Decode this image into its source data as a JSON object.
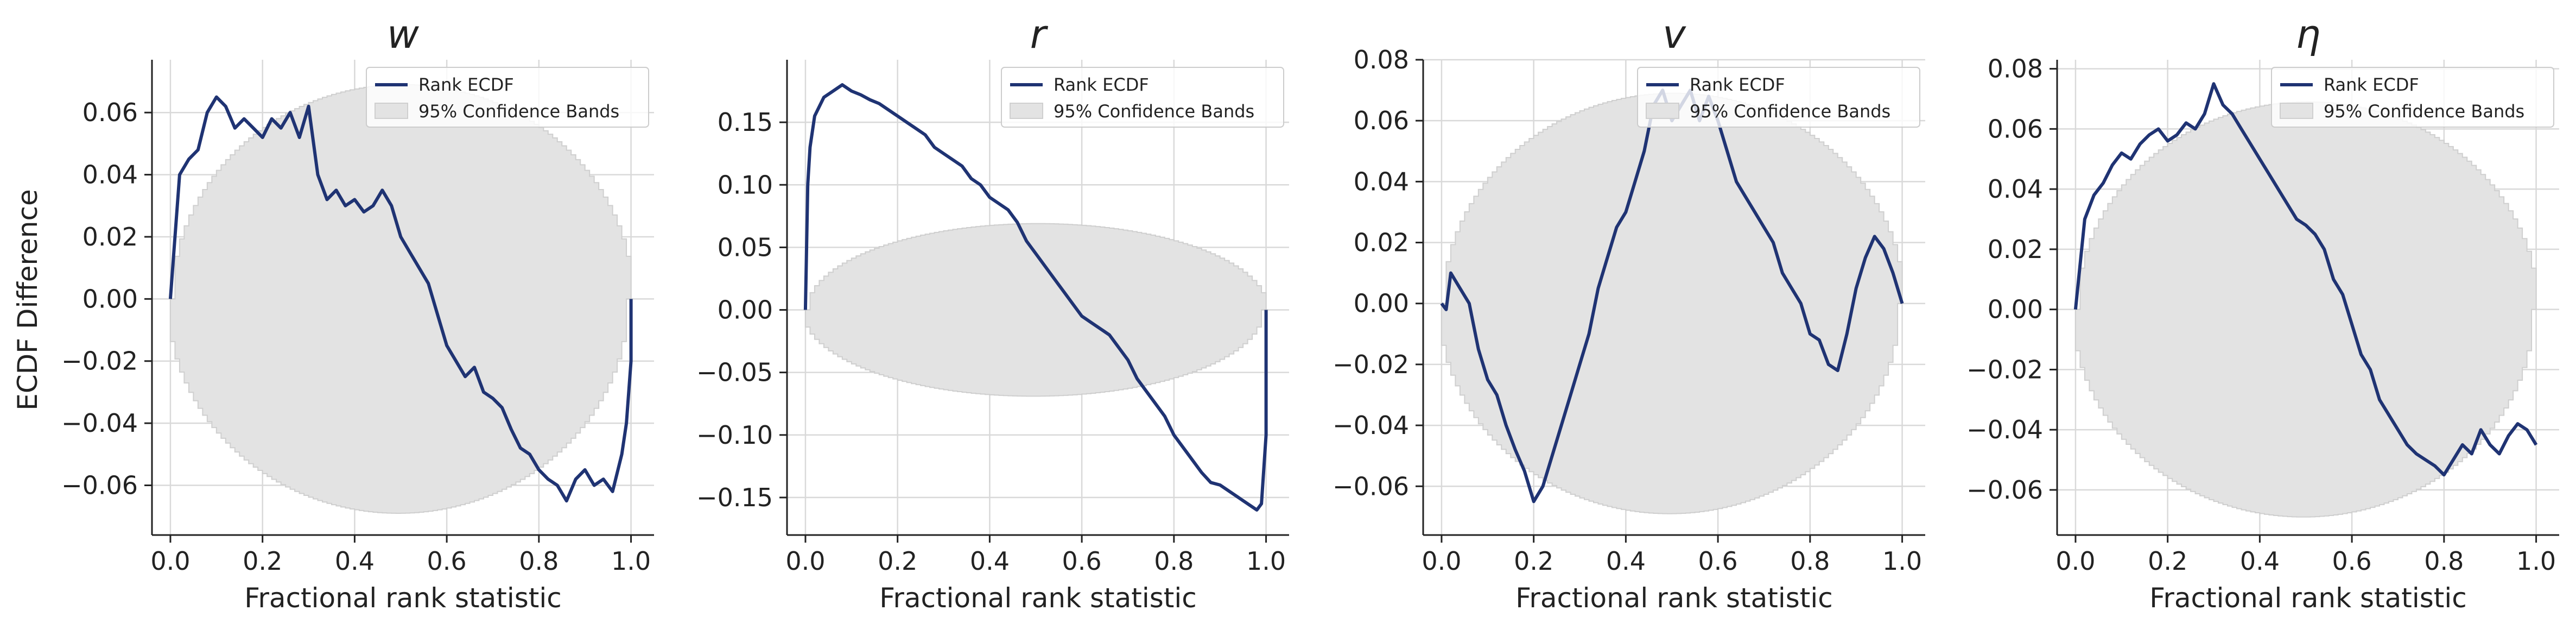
{
  "figure": {
    "shared_ylabel": "ECDF Difference",
    "xlabel": "Fractional rank statistic",
    "legend": {
      "line_label": "Rank ECDF",
      "band_label": "95% Confidence Bands",
      "placement": "upper right"
    },
    "colors": {
      "line": "#1f3373",
      "band_fill": "#e3e3e3",
      "band_edge": "#cfcfcf",
      "grid": "#d9d9d9",
      "axis": "#222222"
    }
  },
  "chart_data": [
    {
      "type": "line",
      "title": "w",
      "xlabel": "Fractional rank statistic",
      "ylabel": "ECDF Difference",
      "xlim": [
        -0.04,
        1.05
      ],
      "ylim": [
        -0.076,
        0.077
      ],
      "xticks": [
        0.0,
        0.2,
        0.4,
        0.6,
        0.8,
        1.0
      ],
      "yticks": [
        -0.06,
        -0.04,
        -0.02,
        0.0,
        0.02,
        0.04,
        0.06
      ],
      "tick_labels_x": [
        "0.0",
        "0.2",
        "0.4",
        "0.6",
        "0.8",
        "1.0"
      ],
      "tick_labels_y": [
        "−0.06",
        "−0.04",
        "−0.02",
        "0.00",
        "0.02",
        "0.04",
        "0.06"
      ],
      "grid": true,
      "band_halfwidth": 0.069,
      "series": [
        {
          "name": "Rank ECDF",
          "x": [
            0.0,
            0.01,
            0.02,
            0.04,
            0.06,
            0.08,
            0.1,
            0.12,
            0.14,
            0.16,
            0.18,
            0.2,
            0.22,
            0.24,
            0.26,
            0.28,
            0.3,
            0.32,
            0.34,
            0.36,
            0.38,
            0.4,
            0.42,
            0.44,
            0.46,
            0.48,
            0.5,
            0.52,
            0.54,
            0.56,
            0.58,
            0.6,
            0.62,
            0.64,
            0.66,
            0.68,
            0.7,
            0.72,
            0.74,
            0.76,
            0.78,
            0.8,
            0.82,
            0.84,
            0.86,
            0.88,
            0.9,
            0.92,
            0.94,
            0.96,
            0.98,
            0.99,
            1.0,
            1.0
          ],
          "y": [
            0.0,
            0.02,
            0.04,
            0.045,
            0.048,
            0.06,
            0.065,
            0.062,
            0.055,
            0.058,
            0.055,
            0.052,
            0.058,
            0.055,
            0.06,
            0.052,
            0.062,
            0.04,
            0.032,
            0.035,
            0.03,
            0.032,
            0.028,
            0.03,
            0.035,
            0.03,
            0.02,
            0.015,
            0.01,
            0.005,
            -0.005,
            -0.015,
            -0.02,
            -0.025,
            -0.022,
            -0.03,
            -0.032,
            -0.035,
            -0.042,
            -0.048,
            -0.05,
            -0.055,
            -0.058,
            -0.06,
            -0.065,
            -0.058,
            -0.055,
            -0.06,
            -0.058,
            -0.062,
            -0.05,
            -0.04,
            -0.02,
            0.0
          ]
        }
      ]
    },
    {
      "type": "line",
      "title": "r",
      "xlabel": "Fractional rank statistic",
      "ylabel": "",
      "xlim": [
        -0.04,
        1.05
      ],
      "ylim": [
        -0.18,
        0.2
      ],
      "xticks": [
        0.0,
        0.2,
        0.4,
        0.6,
        0.8,
        1.0
      ],
      "yticks": [
        -0.15,
        -0.1,
        -0.05,
        0.0,
        0.05,
        0.1,
        0.15
      ],
      "tick_labels_x": [
        "0.0",
        "0.2",
        "0.4",
        "0.6",
        "0.8",
        "1.0"
      ],
      "tick_labels_y": [
        "−0.15",
        "−0.10",
        "−0.05",
        "0.00",
        "0.05",
        "0.10",
        "0.15"
      ],
      "grid": true,
      "band_halfwidth": 0.069,
      "series": [
        {
          "name": "Rank ECDF",
          "x": [
            0.0,
            0.005,
            0.01,
            0.02,
            0.04,
            0.06,
            0.08,
            0.1,
            0.12,
            0.14,
            0.16,
            0.18,
            0.2,
            0.22,
            0.24,
            0.26,
            0.28,
            0.3,
            0.32,
            0.34,
            0.36,
            0.38,
            0.4,
            0.42,
            0.44,
            0.46,
            0.48,
            0.5,
            0.52,
            0.54,
            0.56,
            0.58,
            0.6,
            0.62,
            0.64,
            0.66,
            0.68,
            0.7,
            0.72,
            0.74,
            0.76,
            0.78,
            0.8,
            0.82,
            0.84,
            0.86,
            0.88,
            0.9,
            0.92,
            0.94,
            0.96,
            0.98,
            0.99,
            1.0,
            1.0
          ],
          "y": [
            0.0,
            0.1,
            0.13,
            0.155,
            0.17,
            0.175,
            0.18,
            0.175,
            0.172,
            0.168,
            0.165,
            0.16,
            0.155,
            0.15,
            0.145,
            0.14,
            0.13,
            0.125,
            0.12,
            0.115,
            0.105,
            0.1,
            0.09,
            0.085,
            0.08,
            0.07,
            0.055,
            0.045,
            0.035,
            0.025,
            0.015,
            0.005,
            -0.005,
            -0.01,
            -0.015,
            -0.02,
            -0.03,
            -0.04,
            -0.055,
            -0.065,
            -0.075,
            -0.085,
            -0.1,
            -0.11,
            -0.12,
            -0.13,
            -0.138,
            -0.14,
            -0.145,
            -0.15,
            -0.155,
            -0.16,
            -0.155,
            -0.1,
            0.0
          ]
        }
      ]
    },
    {
      "type": "line",
      "title": "v",
      "xlabel": "Fractional rank statistic",
      "ylabel": "",
      "xlim": [
        -0.04,
        1.05
      ],
      "ylim": [
        -0.076,
        0.08
      ],
      "xticks": [
        0.0,
        0.2,
        0.4,
        0.6,
        0.8,
        1.0
      ],
      "yticks": [
        -0.06,
        -0.04,
        -0.02,
        0.0,
        0.02,
        0.04,
        0.06,
        0.08
      ],
      "tick_labels_x": [
        "0.0",
        "0.2",
        "0.4",
        "0.6",
        "0.8",
        "1.0"
      ],
      "tick_labels_y": [
        "−0.06",
        "−0.04",
        "−0.02",
        "0.00",
        "0.02",
        "0.04",
        "0.06",
        "0.08"
      ],
      "grid": true,
      "band_halfwidth": 0.069,
      "series": [
        {
          "name": "Rank ECDF",
          "x": [
            0.0,
            0.01,
            0.02,
            0.04,
            0.06,
            0.08,
            0.1,
            0.12,
            0.14,
            0.16,
            0.18,
            0.2,
            0.22,
            0.24,
            0.26,
            0.28,
            0.3,
            0.32,
            0.34,
            0.36,
            0.38,
            0.4,
            0.42,
            0.44,
            0.46,
            0.48,
            0.5,
            0.52,
            0.54,
            0.56,
            0.58,
            0.6,
            0.62,
            0.64,
            0.66,
            0.68,
            0.7,
            0.72,
            0.74,
            0.76,
            0.78,
            0.8,
            0.82,
            0.84,
            0.86,
            0.88,
            0.9,
            0.92,
            0.94,
            0.96,
            0.98,
            1.0
          ],
          "y": [
            0.0,
            -0.002,
            0.01,
            0.005,
            0.0,
            -0.015,
            -0.025,
            -0.03,
            -0.04,
            -0.048,
            -0.055,
            -0.065,
            -0.06,
            -0.05,
            -0.04,
            -0.03,
            -0.02,
            -0.01,
            0.005,
            0.015,
            0.025,
            0.03,
            0.04,
            0.05,
            0.065,
            0.07,
            0.06,
            0.065,
            0.07,
            0.06,
            0.068,
            0.06,
            0.05,
            0.04,
            0.035,
            0.03,
            0.025,
            0.02,
            0.01,
            0.005,
            0.0,
            -0.01,
            -0.012,
            -0.02,
            -0.022,
            -0.01,
            0.005,
            0.015,
            0.022,
            0.018,
            0.01,
            0.0
          ]
        }
      ]
    },
    {
      "type": "line",
      "title": "η",
      "xlabel": "Fractional rank statistic",
      "ylabel": "",
      "xlim": [
        -0.04,
        1.05
      ],
      "ylim": [
        -0.075,
        0.083
      ],
      "xticks": [
        0.0,
        0.2,
        0.4,
        0.6,
        0.8,
        1.0
      ],
      "yticks": [
        -0.06,
        -0.04,
        -0.02,
        0.0,
        0.02,
        0.04,
        0.06,
        0.08
      ],
      "tick_labels_x": [
        "0.0",
        "0.2",
        "0.4",
        "0.6",
        "0.8",
        "1.0"
      ],
      "tick_labels_y": [
        "−0.06",
        "−0.04",
        "−0.02",
        "0.00",
        "0.02",
        "0.04",
        "0.06",
        "0.08"
      ],
      "grid": true,
      "band_halfwidth": 0.069,
      "series": [
        {
          "name": "Rank ECDF",
          "x": [
            0.0,
            0.01,
            0.02,
            0.04,
            0.06,
            0.08,
            0.1,
            0.12,
            0.14,
            0.16,
            0.18,
            0.2,
            0.22,
            0.24,
            0.26,
            0.28,
            0.3,
            0.32,
            0.34,
            0.36,
            0.38,
            0.4,
            0.42,
            0.44,
            0.46,
            0.48,
            0.5,
            0.52,
            0.54,
            0.56,
            0.58,
            0.6,
            0.62,
            0.64,
            0.66,
            0.68,
            0.7,
            0.72,
            0.74,
            0.76,
            0.78,
            0.8,
            0.82,
            0.84,
            0.86,
            0.88,
            0.9,
            0.92,
            0.94,
            0.96,
            0.98,
            1.0
          ],
          "y": [
            0.0,
            0.015,
            0.03,
            0.038,
            0.042,
            0.048,
            0.052,
            0.05,
            0.055,
            0.058,
            0.06,
            0.056,
            0.058,
            0.062,
            0.06,
            0.065,
            0.075,
            0.068,
            0.065,
            0.06,
            0.055,
            0.05,
            0.045,
            0.04,
            0.035,
            0.03,
            0.028,
            0.025,
            0.02,
            0.01,
            0.005,
            -0.005,
            -0.015,
            -0.02,
            -0.03,
            -0.035,
            -0.04,
            -0.045,
            -0.048,
            -0.05,
            -0.052,
            -0.055,
            -0.05,
            -0.045,
            -0.048,
            -0.04,
            -0.045,
            -0.048,
            -0.042,
            -0.038,
            -0.04,
            -0.045
          ]
        }
      ]
    }
  ]
}
